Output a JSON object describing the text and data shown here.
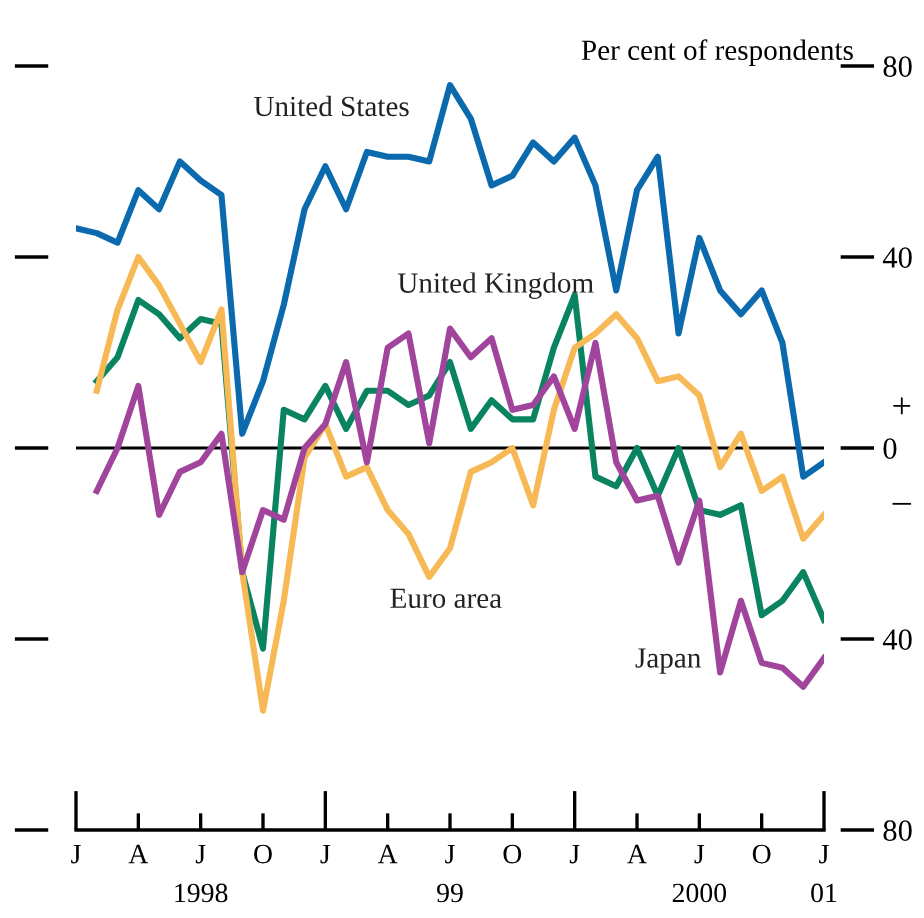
{
  "chart_data": {
    "type": "line",
    "ylabel": "Per cent of respondents",
    "categories": [
      "J",
      null,
      null,
      "A",
      null,
      null,
      "J",
      null,
      null,
      "O",
      null,
      null,
      "J",
      null,
      null,
      "A",
      null,
      null,
      "J",
      null,
      null,
      "O",
      null,
      null,
      "J",
      null,
      null,
      "A",
      null,
      null,
      "J",
      null,
      null,
      "O",
      null,
      null,
      "J"
    ],
    "series": [
      {
        "name": "United States",
        "color": "#0a6aad",
        "values": [
          46,
          45,
          43,
          54,
          50,
          60,
          56,
          53,
          3,
          14,
          30,
          50,
          59,
          50,
          62,
          61,
          61,
          60,
          76,
          69,
          55,
          57,
          64,
          60,
          65,
          55,
          33,
          54,
          61,
          24,
          44,
          33,
          28,
          33,
          22,
          -6,
          -3
        ]
      },
      {
        "name": "United Kingdom",
        "color": "#0a8460",
        "values": [
          null,
          14,
          19,
          31,
          28,
          23,
          27,
          26,
          -26,
          -42,
          8,
          6,
          13,
          4,
          12,
          12,
          9,
          11,
          18,
          4,
          10,
          6,
          6,
          21,
          32,
          -6,
          -8,
          0,
          -10,
          0,
          -13,
          -14,
          -12,
          -35,
          -32,
          -26,
          -36
        ]
      },
      {
        "name": "Euro area",
        "color": "#f6b955",
        "values": [
          null,
          12,
          29,
          40,
          34,
          26,
          18,
          29,
          -26,
          -55,
          -32,
          -2,
          5,
          -6,
          -4,
          -13,
          -18,
          -27,
          -21,
          -5,
          -3,
          0,
          -12,
          8,
          21,
          24,
          28,
          23,
          14,
          15,
          11,
          -4,
          3,
          -9,
          -6,
          -19,
          -14
        ]
      },
      {
        "name": "Japan",
        "color": "#a0449c",
        "values": [
          null,
          -9,
          0,
          13,
          -14,
          -5,
          -3,
          3,
          -26,
          -13,
          -15,
          0,
          5,
          18,
          -3,
          21,
          24,
          1,
          25,
          19,
          23,
          8,
          9,
          15,
          4,
          22,
          -3,
          -11,
          -10,
          -24,
          -11,
          -47,
          -32,
          -45,
          -46,
          -50,
          -44
        ]
      }
    ],
    "ylim": [
      -80,
      80
    ],
    "yticks": [
      {
        "value": -80,
        "label": "80"
      },
      {
        "value": -40,
        "label": "40"
      },
      0,
      40,
      80
    ],
    "ref_lines": [
      {
        "axis": "y",
        "value": 0,
        "color": "#000000"
      }
    ],
    "annotations": [
      "1998",
      "99",
      "2000",
      "01",
      "+",
      "–"
    ],
    "grid": false,
    "legend": false,
    "marker": "none",
    "line_style": "solid"
  }
}
